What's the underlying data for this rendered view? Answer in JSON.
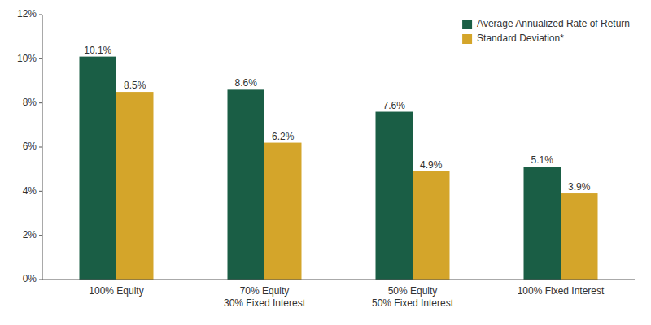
{
  "chart_data": {
    "type": "bar",
    "categories": [
      "100% Equity",
      "70% Equity\n30% Fixed Interest",
      "50% Equity\n50% Fixed Interest",
      "100% Fixed Interest"
    ],
    "series": [
      {
        "name": "Average Annualized Rate of Return",
        "color": "#1a5e45",
        "values": [
          10.1,
          8.6,
          7.6,
          5.1
        ],
        "value_labels": [
          "10.1%",
          "8.6%",
          "7.6%",
          "5.1%"
        ]
      },
      {
        "name": "Standard Deviation*",
        "color": "#d4a52a",
        "values": [
          8.5,
          6.2,
          4.9,
          3.9
        ],
        "value_labels": [
          "8.5%",
          "6.2%",
          "4.9%",
          "3.9%"
        ]
      }
    ],
    "ylim": [
      0,
      12
    ],
    "yticks": [
      {
        "value": 0,
        "label": "0%"
      },
      {
        "value": 2,
        "label": "2%"
      },
      {
        "value": 4,
        "label": "4%"
      },
      {
        "value": 6,
        "label": "6%"
      },
      {
        "value": 8,
        "label": "8%"
      },
      {
        "value": 10,
        "label": "10%"
      },
      {
        "value": 12,
        "label": "12%"
      }
    ],
    "data_labels": true,
    "legend": "upper right",
    "grid": false
  }
}
